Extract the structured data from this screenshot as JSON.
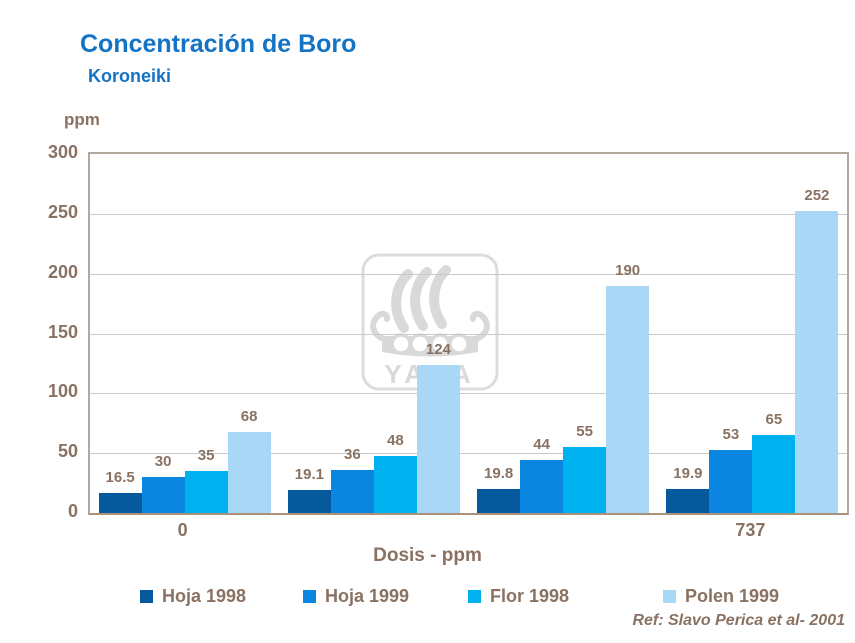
{
  "title": "Concentración de Boro",
  "subtitle": "Koroneiki",
  "y_axis_unit": "ppm",
  "x_axis_title": "Dosis - ppm",
  "reference": "Ref: Slavo Perica et al- 2001",
  "watermark_text": "YARA",
  "colors": {
    "title_blue": "#1373C4",
    "label_brown": "#8A7262",
    "gridline": "#C9C9C9",
    "frame": "#B3A89E",
    "axis_line": "#AB917A",
    "watermark_gray": "#DADADA"
  },
  "chart_data": {
    "type": "bar",
    "title": "Concentración de Boro",
    "subtitle": "Koroneiki",
    "xlabel": "Dosis - ppm",
    "ylabel": "ppm",
    "categories": [
      "0",
      "",
      "",
      "737"
    ],
    "series": [
      {
        "name": "Hoja 1998",
        "color": "#07599E",
        "values": [
          16.5,
          19.1,
          19.8,
          19.9
        ]
      },
      {
        "name": "Hoja 1999",
        "color": "#0B86E0",
        "values": [
          30,
          36,
          44,
          53
        ]
      },
      {
        "name": "Flor 1998",
        "color": "#00B1F0",
        "values": [
          35,
          48,
          55,
          65
        ]
      },
      {
        "name": "Polen 1999",
        "color": "#A9D8F7",
        "values": [
          68,
          124,
          190,
          252
        ]
      }
    ],
    "ylim": [
      0,
      300
    ],
    "yticks": [
      0,
      50,
      100,
      150,
      200,
      250,
      300
    ],
    "grid": true,
    "legend_position": "bottom",
    "value_labels_shown": true
  }
}
